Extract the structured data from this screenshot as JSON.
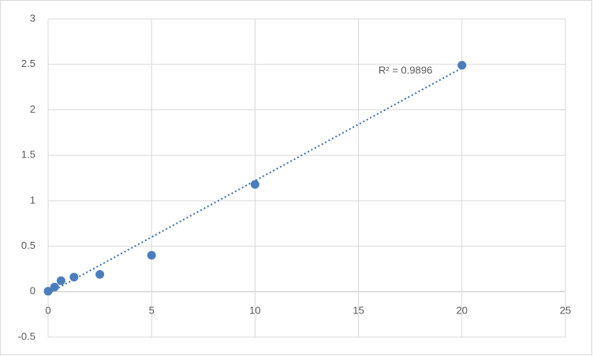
{
  "chart_data": {
    "type": "scatter",
    "x": [
      0,
      0.3125,
      0.625,
      1.25,
      2.5,
      5,
      10,
      20
    ],
    "series": [
      {
        "color": "#4a7ebb",
        "values": [
          0.005,
          0.05,
          0.12,
          0.16,
          0.19,
          0.4,
          1.18,
          2.49
        ]
      }
    ],
    "trendline": {
      "x": [
        0,
        20
      ],
      "y": [
        -0.02,
        2.46
      ],
      "color": "#3d6fa8",
      "annotation": "R² = 0.9896"
    },
    "xlim": [
      0,
      25
    ],
    "xticks": [
      0,
      5,
      10,
      15,
      20,
      25
    ],
    "ylim": [
      -0.5,
      3
    ],
    "yticks": [
      -0.5,
      0,
      0.5,
      1,
      1.5,
      2,
      2.5,
      3
    ],
    "grid": true
  }
}
